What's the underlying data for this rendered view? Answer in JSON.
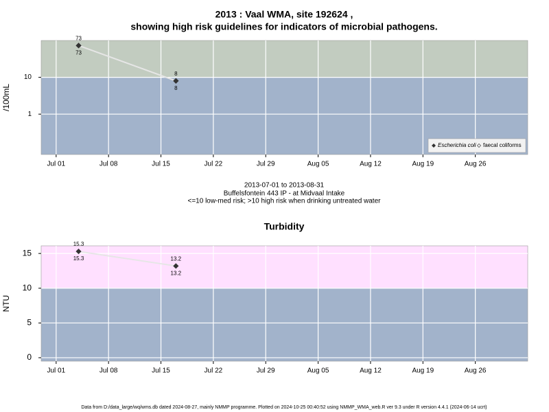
{
  "chart_data": [
    {
      "type": "line",
      "title": "2013 : Vaal WMA, site 192624 ,",
      "subtitle": "showing high risk guidelines for indicators of microbial pathogens.",
      "y_label": "/100mL",
      "log_scale": true,
      "ylim": [
        0.08,
        100
      ],
      "yticks": [
        1,
        10
      ],
      "x": [
        "Jul 04",
        "Jul 17"
      ],
      "xlim": [
        "Jun 29",
        "Sep 02"
      ],
      "xticks": [
        "Jul 01",
        "Jul 08",
        "Jul 15",
        "Jul 22",
        "Jul 29",
        "Aug 05",
        "Aug 12",
        "Aug 19",
        "Aug 26"
      ],
      "threshold": 10,
      "band_colors": [
        "#a2b3cb",
        "#c2ccc0"
      ],
      "grid": true,
      "legend": "bottom-right",
      "line_color": "#e6e6e6",
      "series": [
        {
          "name": "faecal coliforms",
          "color": "#ffffff",
          "values": [
            73,
            8
          ],
          "label_side": "above"
        },
        {
          "name": "Escherichia coli",
          "color": "#333333",
          "values": [
            73,
            8
          ],
          "label_side": "below"
        }
      ],
      "notes": [
        "2013-07-01 to 2013-08-31",
        "Buffelsfontein 443 IP - at Midvaal Intake",
        "<=10 low-med risk; >10 high risk when drinking untreated water"
      ]
    },
    {
      "type": "line",
      "title": "Turbidity",
      "y_label": "NTU",
      "log_scale": false,
      "ylim": [
        -0.5,
        16.1
      ],
      "yticks": [
        0,
        5,
        10,
        15
      ],
      "x": [
        "Jul 04",
        "Jul 17"
      ],
      "xlim": [
        "Jun 29",
        "Sep 02"
      ],
      "xticks": [
        "Jul 01",
        "Jul 08",
        "Jul 15",
        "Jul 22",
        "Jul 29",
        "Aug 05",
        "Aug 12",
        "Aug 19",
        "Aug 26"
      ],
      "threshold": 10,
      "band_colors": [
        "#a2b3cb",
        "#ffe0ff"
      ],
      "grid": true,
      "line_color": "#e6e6e6",
      "color": "#333333",
      "values": [
        15.3,
        13.2
      ]
    }
  ],
  "footer": "Data from D:/data_large/wq/wms.db dated 2024-08-27, mainly NMMP programme. Plotted on 2024-10-25 00:40:52 using NMMP_WMA_web.R ver 9.3 under R version 4.4.1 (2024-06-14 ucrt)"
}
